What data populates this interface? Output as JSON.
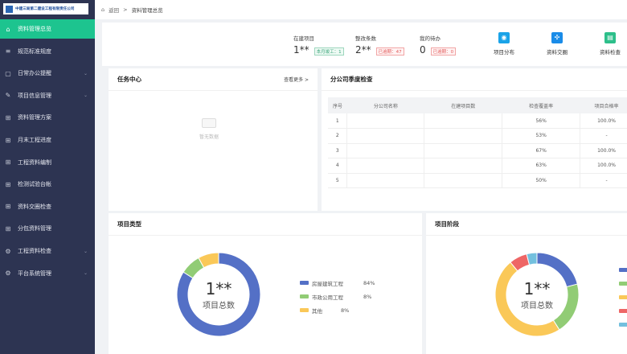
{
  "sidebar": {
    "company": "中建三局第二建设工程有限责任公司",
    "items": [
      {
        "label": "资料管理总览",
        "icon": "home-icon",
        "active": true
      },
      {
        "label": "规范标准规度",
        "icon": "books-icon"
      },
      {
        "label": "日常办公提醒",
        "icon": "clipboard-icon",
        "expand": true
      },
      {
        "label": "项目信息管理",
        "icon": "edit-icon",
        "expand": true
      },
      {
        "label": "资料管理方案",
        "icon": "grid-icon"
      },
      {
        "label": "月末工程进度",
        "icon": "grid-icon"
      },
      {
        "label": "工程资料编制",
        "icon": "grid-icon"
      },
      {
        "label": "检测试验台帐",
        "icon": "grid-icon"
      },
      {
        "label": "资料交圈检查",
        "icon": "grid-icon"
      },
      {
        "label": "分包资料管理",
        "icon": "grid-icon"
      },
      {
        "label": "工程资料检查",
        "icon": "gear-icon",
        "expand": true
      },
      {
        "label": "平台系统管理",
        "icon": "gear-icon",
        "expand": true
      }
    ]
  },
  "breadcrumb": {
    "back": "返回",
    "sep": ">",
    "current": "资料管理总览"
  },
  "stats": [
    {
      "label": "在建项目",
      "value": "1**",
      "tag": "本月竣工：1",
      "tag_color": "green"
    },
    {
      "label": "整改条数",
      "value": "2**",
      "tag": "已逾期：47",
      "tag_color": "red"
    },
    {
      "label": "我的待办",
      "value": "0",
      "tag": "已逾期：0",
      "tag_color": "red"
    }
  ],
  "quick_links": [
    {
      "label": "项目分布",
      "icon": "map-icon",
      "color": "#1aa3e8"
    },
    {
      "label": "资料交圈",
      "icon": "apps-icon",
      "color": "#1a8ce8"
    },
    {
      "label": "资料检查",
      "icon": "doc-check-icon",
      "color": "#2dbf8a"
    }
  ],
  "task_center": {
    "title": "任务中心",
    "more": "查看更多 >",
    "empty": "暂无数据"
  },
  "branch_check": {
    "title": "分公司季度检查",
    "columns": [
      "序号",
      "分公司名称",
      "在建项目数",
      "检查覆盖率",
      "项目合格率"
    ],
    "rows": [
      [
        "1",
        "",
        "",
        "56%",
        "100.0%"
      ],
      [
        "2",
        "",
        "",
        "53%",
        "-"
      ],
      [
        "3",
        "",
        "",
        "67%",
        "100.0%"
      ],
      [
        "4",
        "",
        "",
        "63%",
        "100.0%"
      ],
      [
        "5",
        "",
        "",
        "50%",
        "-"
      ]
    ]
  },
  "chart_data": [
    {
      "type": "pie",
      "title": "项目类型",
      "center_value": "1**",
      "center_label": "项目总数",
      "categories": [
        "房屋建筑工程",
        "市政公用工程",
        "其他"
      ],
      "values": [
        84,
        8,
        8
      ],
      "labels": [
        "84%",
        "8%",
        "8%"
      ],
      "colors": [
        "#5470c6",
        "#91cc75",
        "#fac858"
      ],
      "legend": "right"
    },
    {
      "type": "pie",
      "title": "项目阶段",
      "center_value": "1**",
      "center_label": "项目总数",
      "values": [
        21,
        20,
        48,
        7,
        4
      ],
      "colors": [
        "#5470c6",
        "#91cc75",
        "#fac858",
        "#ee6666",
        "#73c0de"
      ],
      "legend": "right"
    }
  ]
}
